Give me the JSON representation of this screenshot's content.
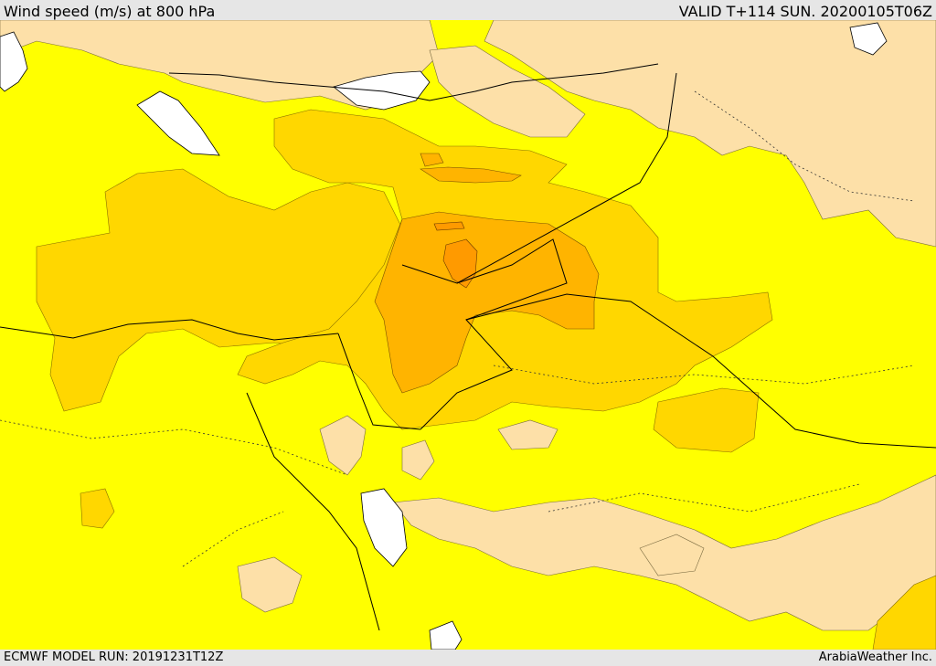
{
  "header": {
    "title": "Wind speed (m/s) at 800 hPa",
    "valid": "VALID T+114 SUN. 20200105T06Z"
  },
  "footer": {
    "model_run": "ECMWF MODEL RUN: 20191231T12Z",
    "brand": "ArabiaWeather Inc."
  },
  "colors": {
    "low": "#fde0a8",
    "base": "#ffff00",
    "mid": "#ffd700",
    "high": "#ffb400",
    "peak": "#ff9a00",
    "water": "#ffffff",
    "border": "#000000"
  }
}
